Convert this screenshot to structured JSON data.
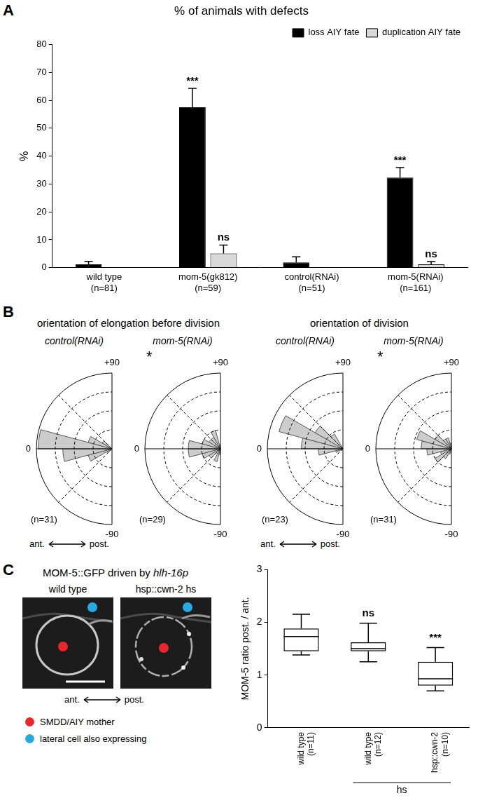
{
  "panel_labels": [
    "A",
    "B",
    "C"
  ],
  "panel_b": {
    "headings": [
      "orientation of elongation before division",
      "orientation of division"
    ],
    "direction": [
      "ant.",
      "post."
    ]
  },
  "panel_c": {
    "title": "MOM-5::GFP driven by",
    "title_italic": "hlh-16p",
    "image_labels": [
      "wild type",
      "hsp::cwn-2 hs"
    ],
    "direction": [
      "ant.",
      "post."
    ],
    "markers": [
      {
        "color": "#e8262b",
        "label": "SMDD/AIY mother"
      },
      {
        "color": "#27a9e1",
        "label": "lateral cell also expressing"
      }
    ]
  },
  "chart_data": [
    {
      "type": "bar",
      "title": "% of animals with defects",
      "ylabel": "%",
      "categories": [
        [
          "wild type",
          "(n=81)"
        ],
        [
          "mom-5(gk812)",
          "(n=59)"
        ],
        [
          "control(RNAi)",
          "(n=51)"
        ],
        [
          "mom-5(RNAi)",
          "(n=161)"
        ]
      ],
      "series": [
        {
          "name": "loss AIY fate",
          "color": "#000000",
          "values": [
            1.2,
            57.5,
            1.9,
            32.3
          ],
          "errors": [
            1.1,
            6.8,
            2.0,
            3.6
          ],
          "significance": [
            null,
            "***",
            null,
            "***"
          ]
        },
        {
          "name": "duplication AIY fate",
          "color": "#d9d9d9",
          "values": [
            0,
            5.1,
            0,
            1.2
          ],
          "errors": [
            0,
            3.0,
            0,
            1.0
          ],
          "significance": [
            null,
            "ns",
            null,
            "ns"
          ]
        }
      ],
      "ylim": [
        0,
        80
      ],
      "yticks": [
        0,
        10,
        20,
        30,
        40,
        50,
        60,
        70,
        80
      ],
      "grid": false,
      "legend": "top-right"
    },
    {
      "type": "rose",
      "title": "control(RNAi)",
      "n_label": "(n=31)",
      "bins": [
        -90,
        -75,
        -60,
        -45,
        -30,
        -15,
        0,
        15,
        30,
        45,
        60,
        75,
        90
      ],
      "values": [
        0,
        0,
        0,
        3,
        13,
        26,
        39,
        13,
        6,
        0,
        0,
        0
      ],
      "color": "#cccccc",
      "xlim": [
        -90,
        90
      ],
      "xticks": [
        {
          "value": 90,
          "label": "+90"
        },
        0,
        -90
      ],
      "ylim": [
        0,
        40
      ],
      "yticks": [
        0,
        10,
        20,
        30,
        40
      ],
      "grid": true,
      "tick_labels": "x"
    },
    {
      "type": "rose",
      "title": "mom-5(RNAi)",
      "n_label": "(n=29)",
      "annotation": "*",
      "bins": [
        -90,
        -75,
        -60,
        -45,
        -30,
        -15,
        0,
        15,
        30,
        45,
        60,
        75,
        90
      ],
      "values": [
        3,
        7,
        3,
        7,
        10,
        17,
        17,
        10,
        7,
        7,
        10,
        2
      ],
      "color": "#cccccc",
      "xlim": [
        -90,
        90
      ],
      "xticks": [
        {
          "value": 90,
          "label": "+90"
        },
        0,
        -90
      ],
      "ylim": [
        0,
        40
      ],
      "yticks": [
        0,
        10,
        20,
        30,
        40
      ],
      "grid": true,
      "tick_labels": "x"
    },
    {
      "type": "rose",
      "title": "control(RNAi)",
      "n_label": "(n=23)",
      "bins": [
        -90,
        -75,
        -60,
        -45,
        -30,
        -15,
        0,
        15,
        30,
        45,
        60,
        75,
        90
      ],
      "values": [
        0,
        0,
        0,
        0,
        4,
        13,
        22,
        35,
        17,
        9,
        0,
        0
      ],
      "color": "#cccccc",
      "xlim": [
        -90,
        90
      ],
      "xticks": [
        {
          "value": 90,
          "label": "+90"
        },
        0,
        -90
      ],
      "ylim": [
        0,
        40
      ],
      "yticks": [
        0,
        10,
        20,
        30,
        40
      ],
      "grid": true,
      "tick_labels": "x"
    },
    {
      "type": "rose",
      "title": "mom-5(RNAi)",
      "n_label": "(n=31)",
      "annotation": "*",
      "bins": [
        -90,
        -75,
        -60,
        -45,
        -30,
        -15,
        0,
        15,
        30,
        45,
        60,
        75,
        90
      ],
      "values": [
        0,
        3,
        6,
        10,
        6,
        13,
        16,
        19,
        10,
        6,
        6,
        3
      ],
      "color": "#cccccc",
      "xlim": [
        -90,
        90
      ],
      "xticks": [
        {
          "value": 90,
          "label": "+90"
        },
        0,
        -90
      ],
      "ylim": [
        0,
        40
      ],
      "yticks": [
        0,
        10,
        20,
        30,
        40
      ],
      "grid": true,
      "tick_labels": "x"
    },
    {
      "type": "box",
      "ylabel": "MOM-5 ratio post. / ant.",
      "categories": [
        [
          "wild type",
          "(n=11)"
        ],
        [
          "wild type",
          "(n=12)"
        ],
        [
          "hsp::cwn-2",
          "(n=10)"
        ]
      ],
      "values": [
        {
          "min": 1.38,
          "q1": 1.45,
          "median": 1.73,
          "q3": 1.88,
          "max": 2.15
        },
        {
          "min": 1.25,
          "q1": 1.45,
          "median": 1.5,
          "q3": 1.62,
          "max": 1.98
        },
        {
          "min": 0.7,
          "q1": 0.8,
          "median": 0.93,
          "q3": 1.25,
          "max": 1.52
        }
      ],
      "significance": [
        null,
        "ns",
        "***"
      ],
      "group_label": {
        "text": "hs",
        "categories": [
          1,
          2
        ]
      },
      "color": "#ffffff",
      "ylim": [
        0,
        3
      ],
      "yticks": [
        0,
        1,
        2,
        3
      ],
      "grid": false
    }
  ]
}
